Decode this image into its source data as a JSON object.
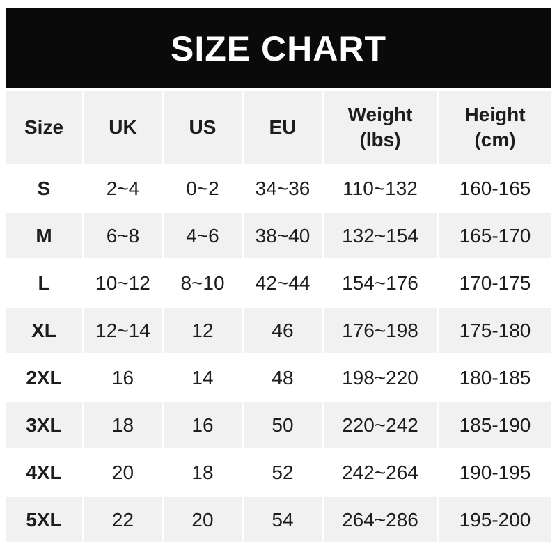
{
  "title": "SIZE CHART",
  "colors": {
    "banner_bg": "#0a0a0a",
    "banner_text": "#ffffff",
    "alt_row_bg": "#f1f1f2",
    "text": "#1d1d1f",
    "page_bg": "#ffffff"
  },
  "table": {
    "headers": [
      {
        "line1": "Size",
        "line2": ""
      },
      {
        "line1": "UK",
        "line2": ""
      },
      {
        "line1": "US",
        "line2": ""
      },
      {
        "line1": "EU",
        "line2": ""
      },
      {
        "line1": "Weight",
        "line2": "(lbs)"
      },
      {
        "line1": "Height",
        "line2": "(cm)"
      }
    ],
    "rows": [
      {
        "size": "S",
        "uk": "2~4",
        "us": "0~2",
        "eu": "34~36",
        "weight": "110~132",
        "height": "160-165"
      },
      {
        "size": "M",
        "uk": "6~8",
        "us": "4~6",
        "eu": "38~40",
        "weight": "132~154",
        "height": "165-170"
      },
      {
        "size": "L",
        "uk": "10~12",
        "us": "8~10",
        "eu": "42~44",
        "weight": "154~176",
        "height": "170-175"
      },
      {
        "size": "XL",
        "uk": "12~14",
        "us": "12",
        "eu": "46",
        "weight": "176~198",
        "height": "175-180"
      },
      {
        "size": "2XL",
        "uk": "16",
        "us": "14",
        "eu": "48",
        "weight": "198~220",
        "height": "180-185"
      },
      {
        "size": "3XL",
        "uk": "18",
        "us": "16",
        "eu": "50",
        "weight": "220~242",
        "height": "185-190"
      },
      {
        "size": "4XL",
        "uk": "20",
        "us": "18",
        "eu": "52",
        "weight": "242~264",
        "height": "190-195"
      },
      {
        "size": "5XL",
        "uk": "22",
        "us": "20",
        "eu": "54",
        "weight": "264~286",
        "height": "195-200"
      }
    ]
  },
  "chart_data": {
    "type": "table",
    "title": "SIZE CHART",
    "columns": [
      "Size",
      "UK",
      "US",
      "EU",
      "Weight (lbs)",
      "Height (cm)"
    ],
    "rows": [
      [
        "S",
        "2~4",
        "0~2",
        "34~36",
        "110~132",
        "160-165"
      ],
      [
        "M",
        "6~8",
        "4~6",
        "38~40",
        "132~154",
        "165-170"
      ],
      [
        "L",
        "10~12",
        "8~10",
        "42~44",
        "154~176",
        "170-175"
      ],
      [
        "XL",
        "12~14",
        "12",
        "46",
        "176~198",
        "175-180"
      ],
      [
        "2XL",
        "16",
        "14",
        "48",
        "198~220",
        "180-185"
      ],
      [
        "3XL",
        "18",
        "16",
        "50",
        "220~242",
        "185-190"
      ],
      [
        "4XL",
        "20",
        "18",
        "52",
        "242~264",
        "190-195"
      ],
      [
        "5XL",
        "22",
        "20",
        "54",
        "264~286",
        "195-200"
      ]
    ],
    "layout": {
      "header_band": "black banner top",
      "alternating_rows": true,
      "first_data_row_bg": "white"
    }
  }
}
